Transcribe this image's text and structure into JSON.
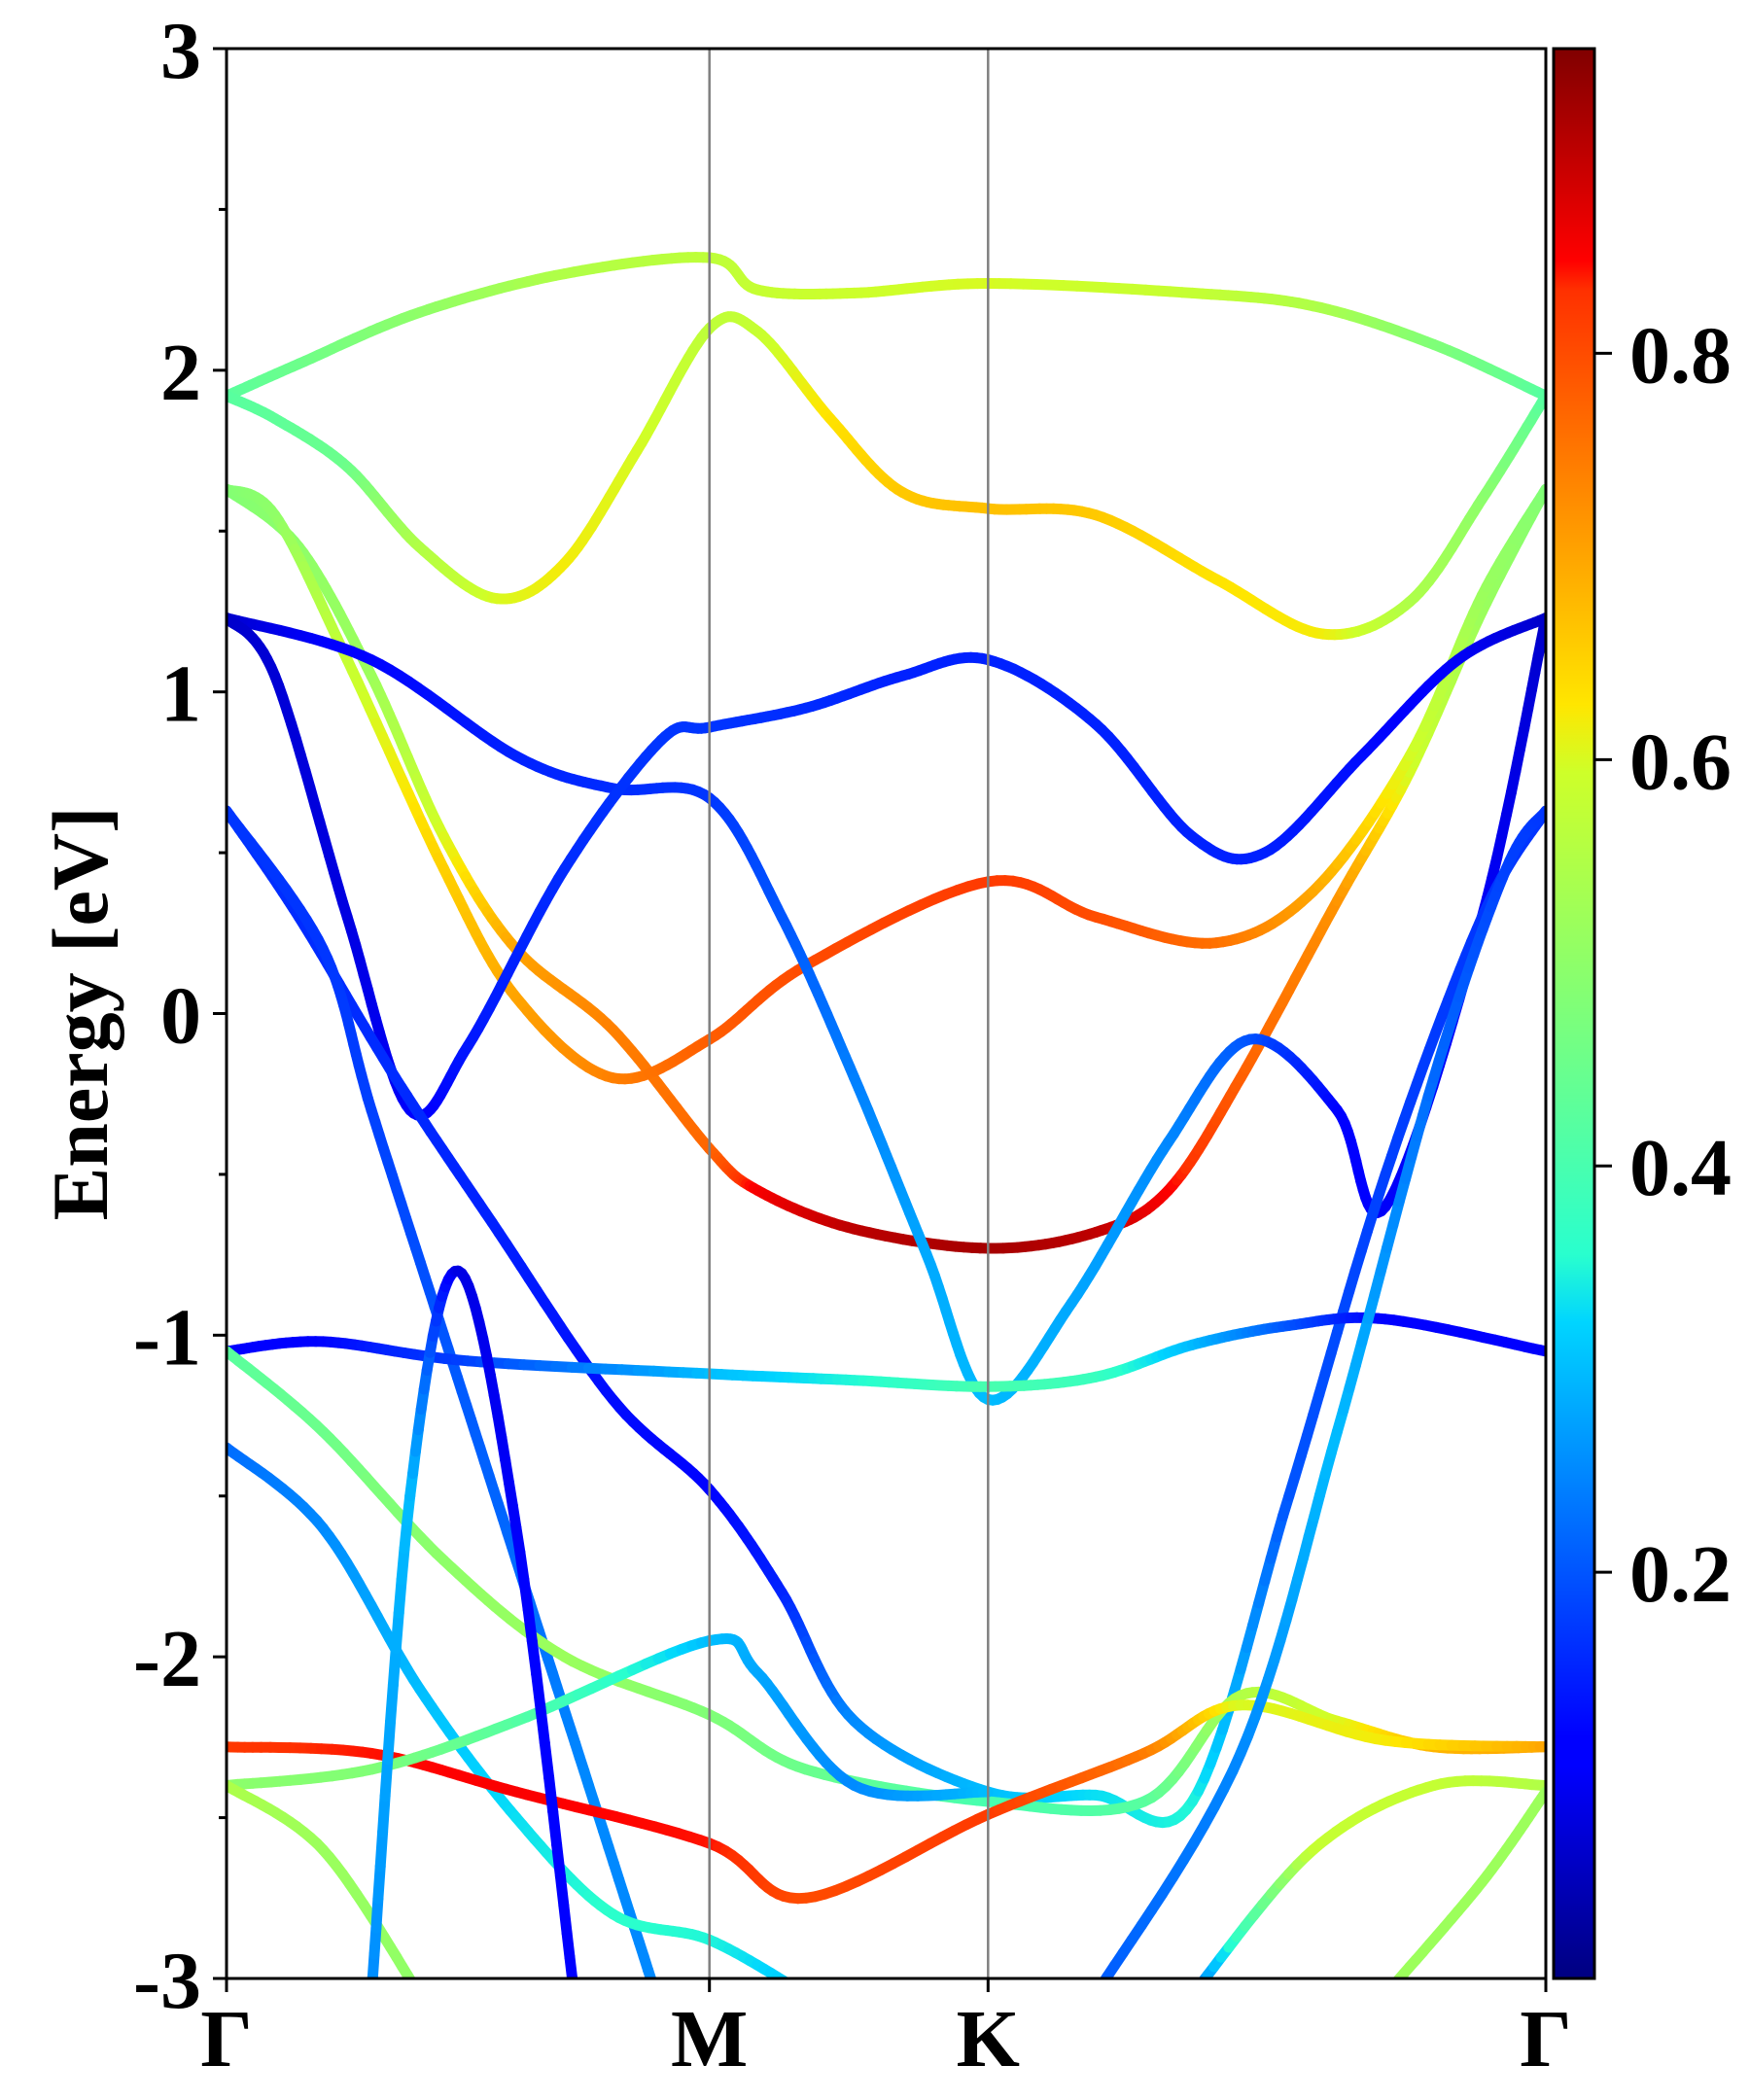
{
  "chart_data": {
    "type": "line",
    "title": "",
    "ylabel": "Energy [eV]",
    "xlabel": "",
    "ylim": [
      -3,
      3
    ],
    "yticks": [
      3,
      2,
      1,
      0,
      -1,
      -2,
      -3
    ],
    "kpath": [
      "Γ",
      "M",
      "K",
      "Γ"
    ],
    "kpath_positions": [
      0,
      1,
      1.577,
      2.732
    ],
    "colorbar": {
      "ticks": [
        "0.8",
        "0.6",
        "0.4",
        "0.2"
      ],
      "tick_values": [
        0.8,
        0.6,
        0.4,
        0.2
      ],
      "range": [
        0,
        0.95
      ],
      "colormap": "jet"
    },
    "grid": false,
    "legend": "none",
    "series": [
      {
        "points": [
          [
            0,
            1.92,
            0.42
          ],
          [
            0.15,
            2.02,
            0.45
          ],
          [
            0.4,
            2.18,
            0.5
          ],
          [
            0.7,
            2.3,
            0.55
          ],
          [
            1.0,
            2.35,
            0.57
          ],
          [
            1.1,
            2.25,
            0.58
          ],
          [
            1.3,
            2.24,
            0.59
          ],
          [
            1.577,
            2.27,
            0.6
          ],
          [
            2.0,
            2.24,
            0.58
          ],
          [
            2.25,
            2.2,
            0.55
          ],
          [
            2.5,
            2.08,
            0.48
          ],
          [
            2.732,
            1.92,
            0.42
          ]
        ]
      },
      {
        "points": [
          [
            0,
            1.92,
            0.42
          ],
          [
            0.1,
            1.85,
            0.43
          ],
          [
            0.25,
            1.7,
            0.45
          ],
          [
            0.4,
            1.45,
            0.55
          ],
          [
            0.56,
            1.29,
            0.6
          ],
          [
            0.7,
            1.4,
            0.62
          ],
          [
            0.85,
            1.75,
            0.6
          ],
          [
            1.0,
            2.13,
            0.57
          ],
          [
            1.1,
            2.12,
            0.58
          ],
          [
            1.25,
            1.85,
            0.63
          ],
          [
            1.4,
            1.62,
            0.66
          ],
          [
            1.577,
            1.57,
            0.67
          ],
          [
            1.8,
            1.55,
            0.66
          ],
          [
            2.05,
            1.35,
            0.63
          ],
          [
            2.27,
            1.18,
            0.62
          ],
          [
            2.45,
            1.28,
            0.55
          ],
          [
            2.6,
            1.6,
            0.5
          ],
          [
            2.732,
            1.92,
            0.42
          ]
        ]
      },
      {
        "points": [
          [
            0,
            1.63,
            0.48
          ],
          [
            0.15,
            1.45,
            0.5
          ],
          [
            0.3,
            1.05,
            0.52
          ],
          [
            0.45,
            0.55,
            0.6
          ],
          [
            0.6,
            0.2,
            0.7
          ],
          [
            0.8,
            -0.05,
            0.74
          ],
          [
            1.0,
            -0.42,
            0.77
          ],
          [
            1.1,
            -0.55,
            0.85
          ],
          [
            1.3,
            -0.67,
            0.9
          ],
          [
            1.577,
            -0.73,
            0.92
          ],
          [
            1.8,
            -0.68,
            0.9
          ],
          [
            1.95,
            -0.55,
            0.85
          ],
          [
            2.1,
            -0.2,
            0.78
          ],
          [
            2.3,
            0.35,
            0.72
          ],
          [
            2.45,
            0.75,
            0.6
          ],
          [
            2.6,
            1.25,
            0.52
          ],
          [
            2.732,
            1.63,
            0.48
          ]
        ]
      },
      {
        "points": [
          [
            0,
            1.63,
            0.48
          ],
          [
            0.1,
            1.55,
            0.5
          ],
          [
            0.25,
            1.1,
            0.58
          ],
          [
            0.45,
            0.45,
            0.65
          ],
          [
            0.6,
            0.05,
            0.7
          ],
          [
            0.8,
            -0.2,
            0.74
          ],
          [
            1.0,
            -0.08,
            0.78
          ],
          [
            1.2,
            0.15,
            0.8
          ],
          [
            1.577,
            0.41,
            0.82
          ],
          [
            1.8,
            0.3,
            0.8
          ],
          [
            2.05,
            0.22,
            0.76
          ],
          [
            2.25,
            0.38,
            0.7
          ],
          [
            2.45,
            0.8,
            0.6
          ],
          [
            2.6,
            1.3,
            0.52
          ],
          [
            2.732,
            1.63,
            0.48
          ]
        ]
      },
      {
        "points": [
          [
            0,
            1.23,
            0.06
          ],
          [
            0.3,
            1.1,
            0.12
          ],
          [
            0.6,
            0.8,
            0.15
          ],
          [
            0.8,
            0.7,
            0.16
          ],
          [
            1.0,
            0.67,
            0.17
          ],
          [
            1.15,
            0.3,
            0.2
          ],
          [
            1.3,
            -0.2,
            0.24
          ],
          [
            1.45,
            -0.75,
            0.28
          ],
          [
            1.577,
            -1.2,
            0.3
          ],
          [
            1.75,
            -0.9,
            0.28
          ],
          [
            1.95,
            -0.4,
            0.25
          ],
          [
            2.12,
            -0.08,
            0.2
          ],
          [
            2.3,
            -0.3,
            0.12
          ],
          [
            2.4,
            -0.6,
            0.1
          ],
          [
            2.6,
            0.3,
            0.1
          ],
          [
            2.732,
            1.23,
            0.06
          ]
        ]
      },
      {
        "points": [
          [
            0,
            1.23,
            0.06
          ],
          [
            0.1,
            1.05,
            0.07
          ],
          [
            0.25,
            0.3,
            0.08
          ],
          [
            0.38,
            -0.3,
            0.1
          ],
          [
            0.5,
            -0.1,
            0.14
          ],
          [
            0.7,
            0.45,
            0.16
          ],
          [
            0.9,
            0.85,
            0.17
          ],
          [
            1.0,
            0.89,
            0.17
          ],
          [
            1.2,
            0.95,
            0.16
          ],
          [
            1.4,
            1.05,
            0.15
          ],
          [
            1.577,
            1.1,
            0.15
          ],
          [
            1.8,
            0.9,
            0.15
          ],
          [
            2.0,
            0.55,
            0.15
          ],
          [
            2.15,
            0.5,
            0.15
          ],
          [
            2.35,
            0.8,
            0.13
          ],
          [
            2.55,
            1.1,
            0.1
          ],
          [
            2.732,
            1.23,
            0.06
          ]
        ]
      },
      {
        "points": [
          [
            0,
            0.63,
            0.17
          ],
          [
            0.15,
            0.3,
            0.16
          ],
          [
            0.35,
            -0.2,
            0.16
          ],
          [
            0.55,
            -0.65,
            0.15
          ],
          [
            0.8,
            -1.2,
            0.13
          ],
          [
            1.0,
            -1.48,
            0.12
          ],
          [
            1.15,
            -1.8,
            0.15
          ],
          [
            1.3,
            -2.2,
            0.25
          ],
          [
            1.577,
            -2.42,
            0.3
          ],
          [
            1.8,
            -2.43,
            0.33
          ],
          [
            2.0,
            -2.45,
            0.35
          ],
          [
            2.2,
            -1.5,
            0.2
          ],
          [
            2.4,
            -0.5,
            0.18
          ],
          [
            2.6,
            0.3,
            0.17
          ],
          [
            2.732,
            0.63,
            0.17
          ]
        ]
      },
      {
        "points": [
          [
            0,
            0.63,
            0.17
          ],
          [
            0.2,
            0.2,
            0.17
          ],
          [
            0.3,
            -0.3,
            0.18
          ],
          [
            0.45,
            -1.0,
            0.2
          ],
          [
            0.6,
            -1.7,
            0.22
          ],
          [
            0.75,
            -2.4,
            0.25
          ],
          [
            0.9,
            -3.1,
            0.25
          ]
        ]
      },
      {
        "points": [
          [
            0,
            -1.05,
            0.1
          ],
          [
            0.2,
            -1.02,
            0.12
          ],
          [
            0.5,
            -1.08,
            0.18
          ],
          [
            1.0,
            -1.12,
            0.3
          ],
          [
            1.3,
            -1.14,
            0.35
          ],
          [
            1.577,
            -1.16,
            0.4
          ],
          [
            1.8,
            -1.13,
            0.38
          ],
          [
            2.0,
            -1.03,
            0.3
          ],
          [
            2.2,
            -0.97,
            0.2
          ],
          [
            2.4,
            -0.95,
            0.12
          ],
          [
            2.732,
            -1.05,
            0.1
          ]
        ]
      },
      {
        "points": [
          [
            0,
            -1.05,
            0.42
          ],
          [
            0.2,
            -1.3,
            0.45
          ],
          [
            0.45,
            -1.7,
            0.5
          ],
          [
            0.7,
            -2.0,
            0.52
          ],
          [
            1.0,
            -2.18,
            0.48
          ],
          [
            1.2,
            -2.35,
            0.45
          ],
          [
            1.577,
            -2.45,
            0.4
          ],
          [
            1.9,
            -2.45,
            0.42
          ],
          [
            2.1,
            -2.12,
            0.55
          ],
          [
            2.3,
            -2.2,
            0.6
          ],
          [
            2.5,
            -2.28,
            0.68
          ],
          [
            2.732,
            -2.28,
            0.7
          ]
        ]
      },
      {
        "points": [
          [
            0,
            -1.35,
            0.22
          ],
          [
            0.2,
            -1.6,
            0.25
          ],
          [
            0.4,
            -2.1,
            0.3
          ],
          [
            0.6,
            -2.5,
            0.33
          ],
          [
            0.8,
            -2.8,
            0.36
          ],
          [
            1.0,
            -2.88,
            0.35
          ],
          [
            1.2,
            -3.05,
            0.3
          ]
        ]
      },
      {
        "points": [
          [
            0,
            -2.28,
            0.82
          ],
          [
            0.3,
            -2.3,
            0.84
          ],
          [
            0.6,
            -2.42,
            0.85
          ],
          [
            1.0,
            -2.58,
            0.84
          ],
          [
            1.2,
            -2.75,
            0.8
          ],
          [
            1.577,
            -2.49,
            0.82
          ],
          [
            1.9,
            -2.3,
            0.75
          ],
          [
            2.1,
            -2.15,
            0.6
          ],
          [
            2.4,
            -2.26,
            0.62
          ],
          [
            2.732,
            -2.28,
            0.7
          ]
        ]
      },
      {
        "points": [
          [
            0,
            -2.4,
            0.5
          ],
          [
            0.3,
            -2.35,
            0.48
          ],
          [
            0.6,
            -2.2,
            0.42
          ],
          [
            1.0,
            -1.95,
            0.3
          ],
          [
            1.1,
            -2.05,
            0.28
          ],
          [
            1.3,
            -2.4,
            0.25
          ],
          [
            1.577,
            -2.42,
            0.3
          ]
        ]
      },
      {
        "points": [
          [
            0,
            -2.4,
            0.55
          ],
          [
            0.2,
            -2.6,
            0.52
          ],
          [
            0.4,
            -3.05,
            0.5
          ]
        ]
      },
      {
        "points": [
          [
            2.0,
            -3.05,
            0.2
          ],
          [
            2.25,
            -2.6,
            0.58
          ],
          [
            2.5,
            -2.4,
            0.58
          ],
          [
            2.732,
            -2.4,
            0.55
          ]
        ]
      },
      {
        "points": [
          [
            2.4,
            -3.05,
            0.52
          ],
          [
            2.6,
            -2.7,
            0.52
          ],
          [
            2.732,
            -2.42,
            0.52
          ]
        ]
      },
      {
        "points": [
          [
            1.8,
            -3.05,
            0.2
          ],
          [
            2.1,
            -2.3,
            0.25
          ],
          [
            2.3,
            -1.3,
            0.3
          ],
          [
            2.5,
            -0.2,
            0.22
          ],
          [
            2.65,
            0.45,
            0.18
          ],
          [
            2.732,
            0.63,
            0.17
          ]
        ]
      },
      {
        "points": [
          [
            0.3,
            -3.05,
            0.25
          ],
          [
            0.38,
            -1.5,
            0.3
          ],
          [
            0.48,
            -0.8,
            0.08
          ],
          [
            0.6,
            -1.6,
            0.1
          ],
          [
            0.72,
            -3.05,
            0.12
          ]
        ]
      }
    ]
  }
}
